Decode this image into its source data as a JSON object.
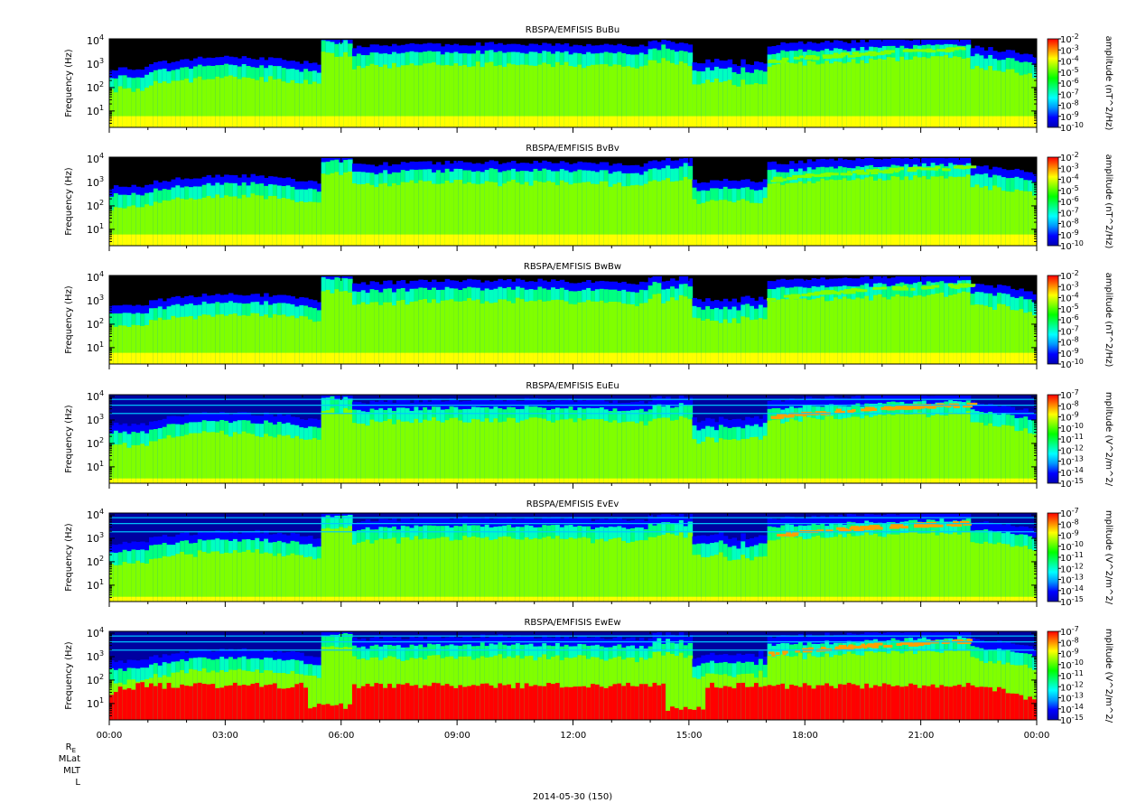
{
  "figure": {
    "date_label": "2014-05-30 (150)",
    "ephemeris_labels": [
      "R",
      "MLat",
      "MLT",
      "L"
    ],
    "ephemeris_re_subscript": "E"
  },
  "chart_data": [
    {
      "type": "heatmap",
      "title": "RBSPA/EMFISIS  BuBu",
      "ylabel": "Frequency (Hz)",
      "yscale": "log",
      "ylim": [
        2,
        12000
      ],
      "y_ticks": [
        {
          "exp": "1"
        },
        {
          "exp": "2"
        },
        {
          "exp": "3"
        },
        {
          "exp": "4"
        }
      ],
      "colorbar_label": "amplitude (nT^2/Hz)",
      "colorbar_scale": "log",
      "colorbar_range": [
        1e-10,
        0.01
      ],
      "colorbar_ticks": [
        "-2",
        "-3",
        "-4",
        "-5",
        "-6",
        "-7",
        "-8",
        "-9",
        "-10"
      ],
      "colorscale": [
        "#0000b4",
        "#0000ff",
        "#0096ff",
        "#00ffff",
        "#00ff80",
        "#00ff00",
        "#80ff00",
        "#ffff00",
        "#ff8000",
        "#ff0000"
      ],
      "x_ticks": [
        "00:00",
        "03:00",
        "06:00",
        "09:00",
        "12:00",
        "15:00",
        "18:00",
        "21:00",
        "00:00"
      ],
      "xlim_hours": [
        0,
        24
      ]
    },
    {
      "type": "heatmap",
      "title": "RBSPA/EMFISIS  BvBv",
      "ylabel": "Frequency (Hz)",
      "yscale": "log",
      "ylim": [
        2,
        12000
      ],
      "y_ticks": [
        {
          "exp": "1"
        },
        {
          "exp": "2"
        },
        {
          "exp": "3"
        },
        {
          "exp": "4"
        }
      ],
      "colorbar_label": "amplitude (nT^2/Hz)",
      "colorbar_scale": "log",
      "colorbar_range": [
        1e-10,
        0.01
      ],
      "colorbar_ticks": [
        "-2",
        "-3",
        "-4",
        "-5",
        "-6",
        "-7",
        "-8",
        "-9",
        "-10"
      ],
      "colorscale": [
        "#0000b4",
        "#0000ff",
        "#0096ff",
        "#00ffff",
        "#00ff80",
        "#00ff00",
        "#80ff00",
        "#ffff00",
        "#ff8000",
        "#ff0000"
      ],
      "x_ticks": [
        "00:00",
        "03:00",
        "06:00",
        "09:00",
        "12:00",
        "15:00",
        "18:00",
        "21:00",
        "00:00"
      ],
      "xlim_hours": [
        0,
        24
      ]
    },
    {
      "type": "heatmap",
      "title": "RBSPA/EMFISIS  BwBw",
      "ylabel": "Frequency (Hz)",
      "yscale": "log",
      "ylim": [
        2,
        12000
      ],
      "y_ticks": [
        {
          "exp": "1"
        },
        {
          "exp": "2"
        },
        {
          "exp": "3"
        },
        {
          "exp": "4"
        }
      ],
      "colorbar_label": "amplitude (nT^2/Hz)",
      "colorbar_scale": "log",
      "colorbar_range": [
        1e-10,
        0.01
      ],
      "colorbar_ticks": [
        "-2",
        "-3",
        "-4",
        "-5",
        "-6",
        "-7",
        "-8",
        "-9",
        "-10"
      ],
      "colorscale": [
        "#0000b4",
        "#0000ff",
        "#0096ff",
        "#00ffff",
        "#00ff80",
        "#00ff00",
        "#80ff00",
        "#ffff00",
        "#ff8000",
        "#ff0000"
      ],
      "x_ticks": [
        "00:00",
        "03:00",
        "06:00",
        "09:00",
        "12:00",
        "15:00",
        "18:00",
        "21:00",
        "00:00"
      ],
      "xlim_hours": [
        0,
        24
      ]
    },
    {
      "type": "heatmap",
      "title": "RBSPA/EMFISIS  EuEu",
      "ylabel": "Frequency (Hz)",
      "yscale": "log",
      "ylim": [
        2,
        12000
      ],
      "y_ticks": [
        {
          "exp": "1"
        },
        {
          "exp": "2"
        },
        {
          "exp": "3"
        },
        {
          "exp": "4"
        }
      ],
      "colorbar_label": "mplitude (V^2/m^2/",
      "colorbar_scale": "log",
      "colorbar_range": [
        1e-15,
        1e-07
      ],
      "colorbar_ticks": [
        "-7",
        "-8",
        "-9",
        "-10",
        "-11",
        "-12",
        "-13",
        "-14",
        "-15"
      ],
      "colorscale": [
        "#0000b4",
        "#0000ff",
        "#0096ff",
        "#00ffff",
        "#00ff80",
        "#00ff00",
        "#80ff00",
        "#ffff00",
        "#ff8000",
        "#ff0000"
      ],
      "x_ticks": [
        "00:00",
        "03:00",
        "06:00",
        "09:00",
        "12:00",
        "15:00",
        "18:00",
        "21:00",
        "00:00"
      ],
      "xlim_hours": [
        0,
        24
      ]
    },
    {
      "type": "heatmap",
      "title": "RBSPA/EMFISIS  EvEv",
      "ylabel": "Frequency (Hz)",
      "yscale": "log",
      "ylim": [
        2,
        12000
      ],
      "y_ticks": [
        {
          "exp": "1"
        },
        {
          "exp": "2"
        },
        {
          "exp": "3"
        },
        {
          "exp": "4"
        }
      ],
      "colorbar_label": "mplitude (V^2/m^2/",
      "colorbar_scale": "log",
      "colorbar_range": [
        1e-15,
        1e-07
      ],
      "colorbar_ticks": [
        "-7",
        "-8",
        "-9",
        "-10",
        "-11",
        "-12",
        "-13",
        "-14",
        "-15"
      ],
      "colorscale": [
        "#0000b4",
        "#0000ff",
        "#0096ff",
        "#00ffff",
        "#00ff80",
        "#00ff00",
        "#80ff00",
        "#ffff00",
        "#ff8000",
        "#ff0000"
      ],
      "x_ticks": [
        "00:00",
        "03:00",
        "06:00",
        "09:00",
        "12:00",
        "15:00",
        "18:00",
        "21:00",
        "00:00"
      ],
      "xlim_hours": [
        0,
        24
      ]
    },
    {
      "type": "heatmap",
      "title": "RBSPA/EMFISIS  EwEw",
      "ylabel": "Frequency (Hz)",
      "yscale": "log",
      "ylim": [
        2,
        12000
      ],
      "y_ticks": [
        {
          "exp": "1"
        },
        {
          "exp": "2"
        },
        {
          "exp": "3"
        },
        {
          "exp": "4"
        }
      ],
      "colorbar_label": "mplitude (V^2/m^2/",
      "colorbar_scale": "log",
      "colorbar_range": [
        1e-15,
        1e-07
      ],
      "colorbar_ticks": [
        "-7",
        "-8",
        "-9",
        "-10",
        "-11",
        "-12",
        "-13",
        "-14",
        "-15"
      ],
      "colorscale": [
        "#0000b4",
        "#0000ff",
        "#0096ff",
        "#00ffff",
        "#00ff80",
        "#00ff00",
        "#80ff00",
        "#ffff00",
        "#ff8000",
        "#ff0000"
      ],
      "x_ticks": [
        "00:00",
        "03:00",
        "06:00",
        "09:00",
        "12:00",
        "15:00",
        "18:00",
        "21:00",
        "00:00"
      ],
      "xlim_hours": [
        0,
        24
      ]
    }
  ]
}
